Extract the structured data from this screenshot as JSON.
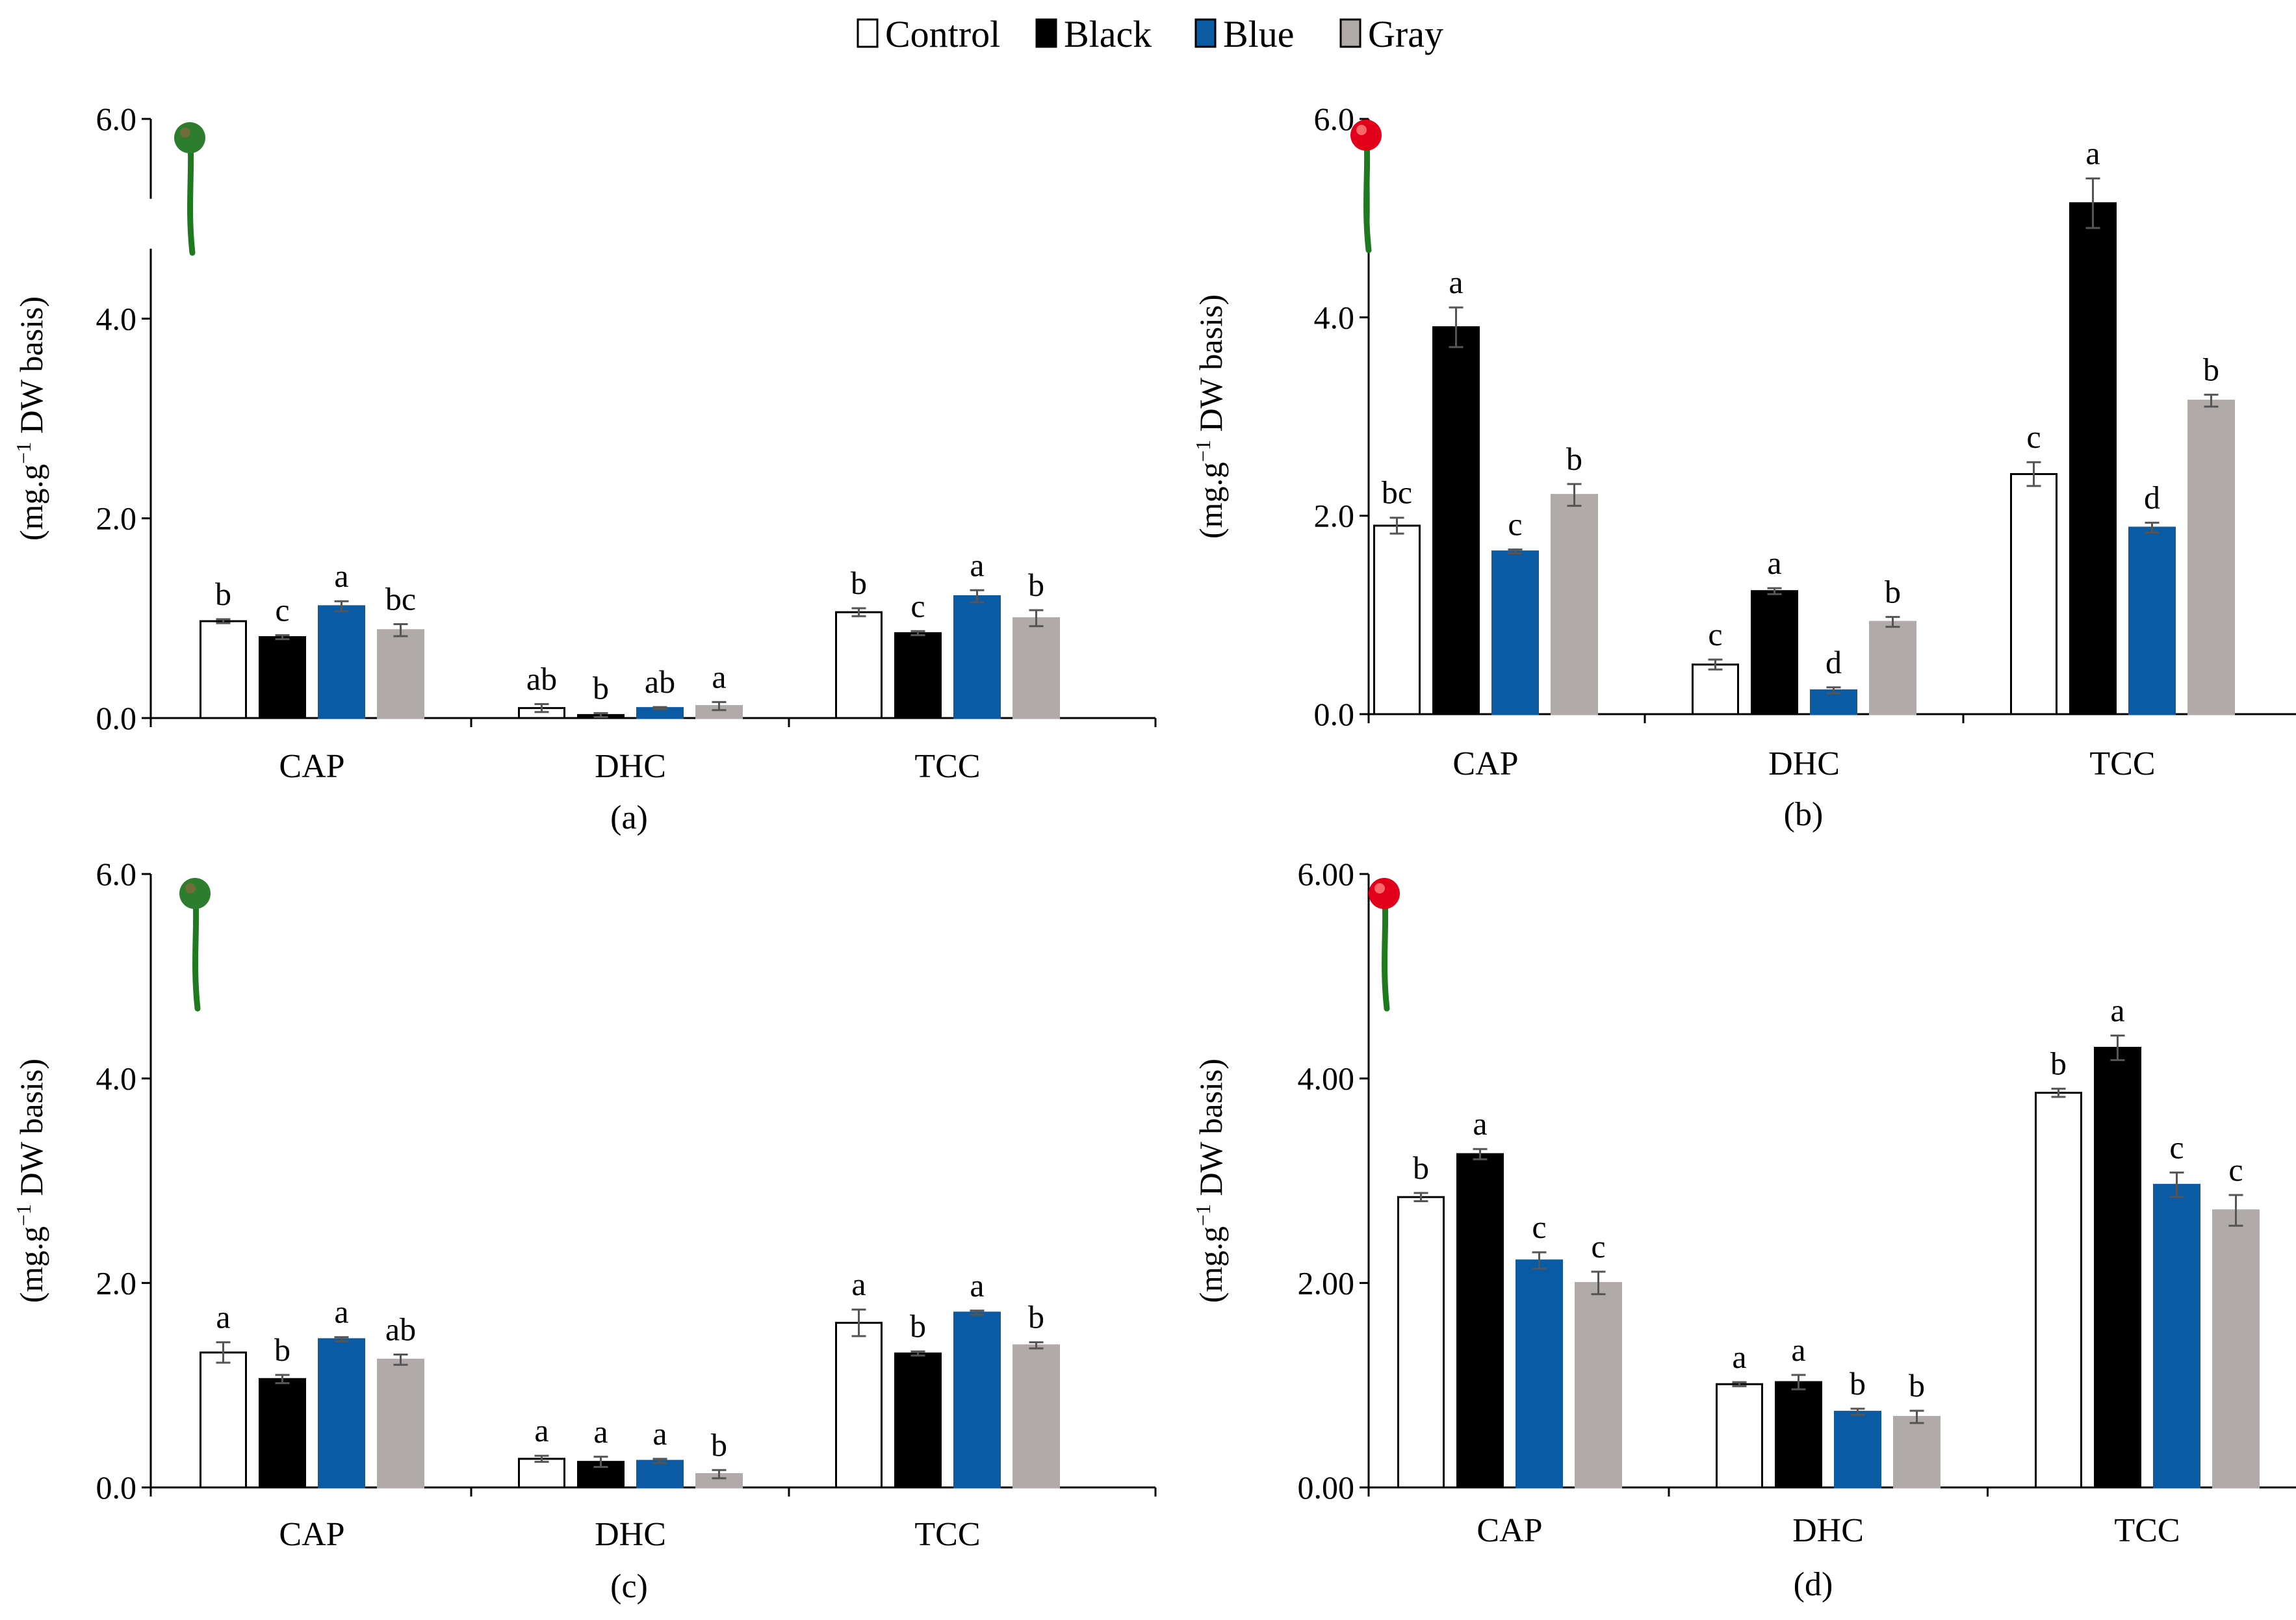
{
  "legend": [
    {
      "name": "Control",
      "color": "#ffffff"
    },
    {
      "name": "Black",
      "color": "#000000"
    },
    {
      "name": "Blue",
      "color": "#0a5aa4"
    },
    {
      "name": "Gray",
      "color": "#b0aaa8"
    }
  ],
  "chart_data": [
    {
      "panel": "(a)",
      "type": "bar",
      "ylabel_prefix": "(mg.g",
      "ylabel_sup": "−1",
      "ylabel_suffix": " DW basis)",
      "ylim": [
        0,
        6
      ],
      "y_ticks": [
        "0.0",
        "2.0",
        "4.0",
        "6.0"
      ],
      "y_axis_break": true,
      "fruit_icon": "green-pepper-icon",
      "categories": [
        "CAP",
        "DHC",
        "TCC"
      ],
      "series": [
        {
          "name": "Control",
          "values": [
            0.97,
            0.1,
            1.06
          ],
          "errors": [
            0.02,
            0.04,
            0.04
          ],
          "letters": [
            "b",
            "ab",
            "b"
          ]
        },
        {
          "name": "Black",
          "values": [
            0.81,
            0.03,
            0.85
          ],
          "errors": [
            0.02,
            0.02,
            0.02
          ],
          "letters": [
            "c",
            "b",
            "c"
          ]
        },
        {
          "name": "Blue",
          "values": [
            1.12,
            0.1,
            1.22
          ],
          "errors": [
            0.05,
            0.01,
            0.06
          ],
          "letters": [
            "a",
            "ab",
            "a"
          ]
        },
        {
          "name": "Gray",
          "values": [
            0.88,
            0.12,
            1.0
          ],
          "errors": [
            0.06,
            0.04,
            0.08
          ],
          "letters": [
            "bc",
            "a",
            "b"
          ]
        }
      ]
    },
    {
      "panel": "(b)",
      "type": "bar",
      "ylabel_prefix": "(mg.g",
      "ylabel_sup": "−1",
      "ylabel_suffix": " DW basis)",
      "ylim": [
        0,
        6
      ],
      "y_ticks": [
        "0.0",
        "2.0",
        "4.0",
        "6.0"
      ],
      "y_axis_break": false,
      "fruit_icon": "red-pepper-icon",
      "categories": [
        "CAP",
        "DHC",
        "TCC"
      ],
      "series": [
        {
          "name": "Control",
          "values": [
            1.9,
            0.5,
            2.42
          ],
          "errors": [
            0.08,
            0.05,
            0.12
          ],
          "letters": [
            "bc",
            "c",
            "c"
          ]
        },
        {
          "name": "Black",
          "values": [
            3.9,
            1.24,
            5.15
          ],
          "errors": [
            0.2,
            0.03,
            0.25
          ],
          "letters": [
            "a",
            "a",
            "a"
          ]
        },
        {
          "name": "Blue",
          "values": [
            1.64,
            0.24,
            1.88
          ],
          "errors": [
            0.02,
            0.03,
            0.05
          ],
          "letters": [
            "c",
            "d",
            "d"
          ]
        },
        {
          "name": "Gray",
          "values": [
            2.21,
            0.93,
            3.16
          ],
          "errors": [
            0.11,
            0.05,
            0.06
          ],
          "letters": [
            "b",
            "b",
            "b"
          ]
        }
      ]
    },
    {
      "panel": "(c)",
      "type": "bar",
      "ylabel_prefix": "(mg.g",
      "ylabel_sup": "−1",
      "ylabel_suffix": " DW basis)",
      "ylim": [
        0,
        6
      ],
      "y_ticks": [
        "0.0",
        "2.0",
        "4.0",
        "6.0"
      ],
      "y_axis_break": false,
      "fruit_icon": "green-pepper-icon",
      "categories": [
        "CAP",
        "DHC",
        "TCC"
      ],
      "series": [
        {
          "name": "Control",
          "values": [
            1.32,
            0.28,
            1.61
          ],
          "errors": [
            0.1,
            0.03,
            0.13
          ],
          "letters": [
            "a",
            "a",
            "a"
          ]
        },
        {
          "name": "Black",
          "values": [
            1.06,
            0.25,
            1.31
          ],
          "errors": [
            0.04,
            0.05,
            0.02
          ],
          "letters": [
            "b",
            "a",
            "b"
          ]
        },
        {
          "name": "Blue",
          "values": [
            1.45,
            0.26,
            1.71
          ],
          "errors": [
            0.02,
            0.02,
            0.02
          ],
          "letters": [
            "a",
            "a",
            "a"
          ]
        },
        {
          "name": "Gray",
          "values": [
            1.25,
            0.13,
            1.39
          ],
          "errors": [
            0.05,
            0.04,
            0.03
          ],
          "letters": [
            "ab",
            "b",
            "b"
          ]
        }
      ]
    },
    {
      "panel": "(d)",
      "type": "bar",
      "ylabel_prefix": "(mg.g",
      "ylabel_sup": "−1",
      "ylabel_suffix": " DW basis)",
      "ylim": [
        0,
        6
      ],
      "y_ticks": [
        "0.00",
        "2.00",
        "4.00",
        "6.00"
      ],
      "y_axis_break": false,
      "fruit_icon": "red-pepper-icon",
      "categories": [
        "CAP",
        "DHC",
        "TCC"
      ],
      "series": [
        {
          "name": "Control",
          "values": [
            2.84,
            1.01,
            3.86
          ],
          "errors": [
            0.04,
            0.02,
            0.04
          ],
          "letters": [
            "b",
            "a",
            "b"
          ]
        },
        {
          "name": "Black",
          "values": [
            3.26,
            1.03,
            4.3
          ],
          "errors": [
            0.05,
            0.07,
            0.12
          ],
          "letters": [
            "a",
            "a",
            "a"
          ]
        },
        {
          "name": "Blue",
          "values": [
            2.22,
            0.74,
            2.96
          ],
          "errors": [
            0.08,
            0.03,
            0.12
          ],
          "letters": [
            "c",
            "b",
            "c"
          ]
        },
        {
          "name": "Gray",
          "values": [
            2.0,
            0.69,
            2.71
          ],
          "errors": [
            0.11,
            0.06,
            0.15
          ],
          "letters": [
            "c",
            "b",
            "c"
          ]
        }
      ]
    }
  ]
}
